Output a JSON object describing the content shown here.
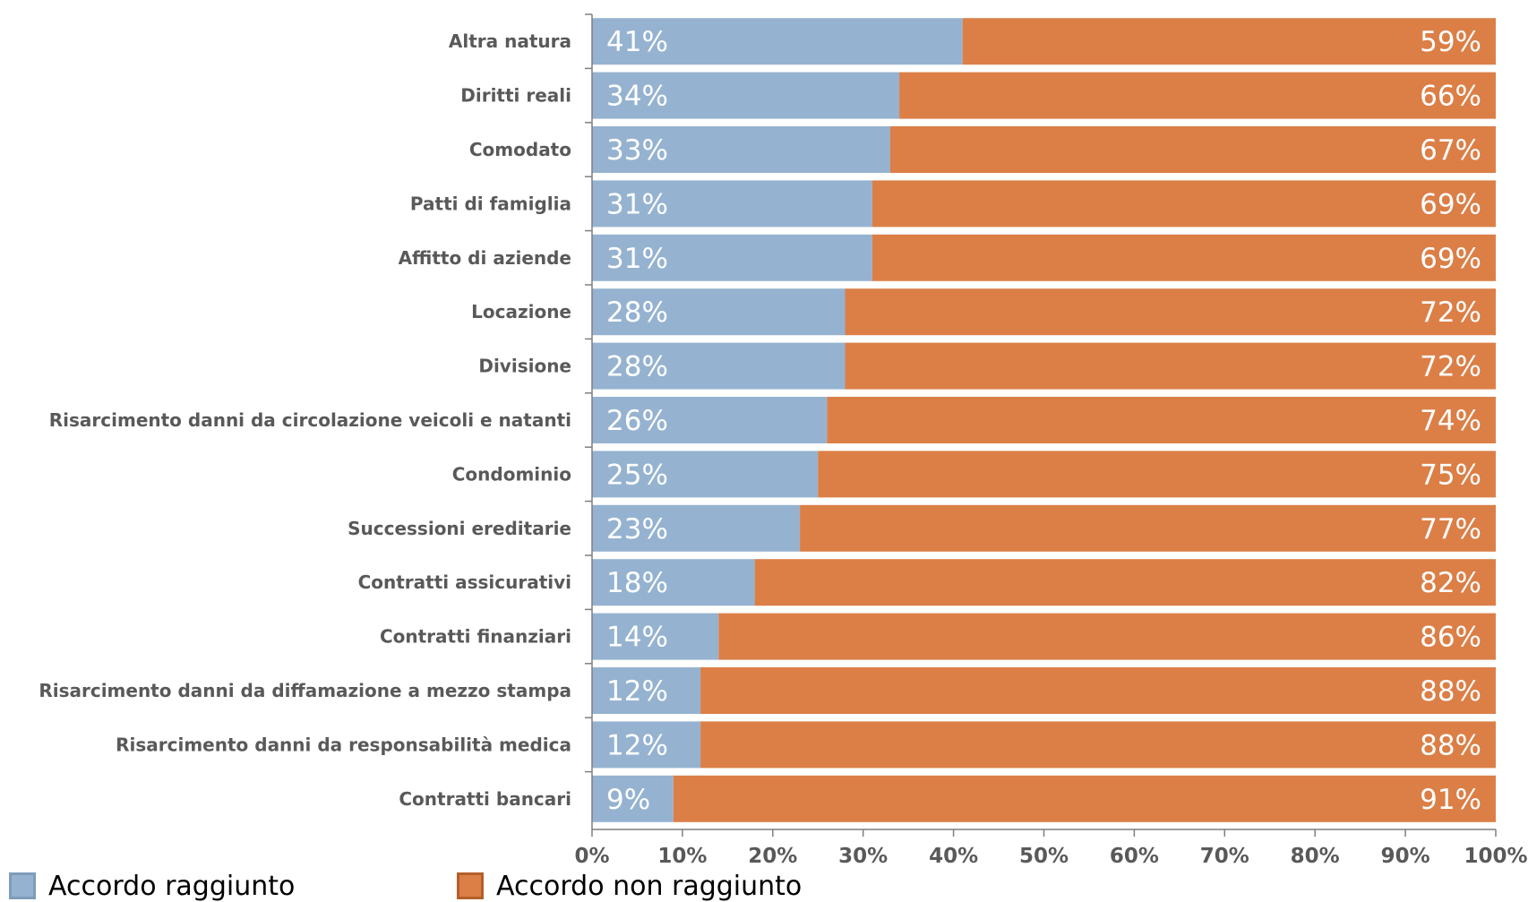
{
  "chart_data": {
    "type": "bar",
    "orientation": "horizontal",
    "stacked": "100%",
    "categories": [
      "Altra natura",
      "Diritti reali",
      "Comodato",
      "Patti di famiglia",
      "Affitto di aziende",
      "Locazione",
      "Divisione",
      "Risarcimento danni da circolazione veicoli e natanti",
      "Condominio",
      "Successioni ereditarie",
      "Contratti assicurativi",
      "Contratti finanziari",
      "Risarcimento danni da diffamazione a mezzo stampa",
      "Risarcimento danni da responsabilità medica",
      "Contratti bancari"
    ],
    "series": [
      {
        "name": "Accordo raggiunto",
        "color": "#95b3d0",
        "values": [
          41,
          34,
          33,
          31,
          31,
          28,
          28,
          26,
          25,
          23,
          18,
          14,
          12,
          12,
          9
        ],
        "labels": [
          "41%",
          "34%",
          "33%",
          "31%",
          "31%",
          "28%",
          "28%",
          "26%",
          "25%",
          "23%",
          "18%",
          "14%",
          "12%",
          "12%",
          "9%"
        ]
      },
      {
        "name": "Accordo non raggiunto",
        "color": "#db7f47",
        "values": [
          59,
          66,
          67,
          69,
          69,
          72,
          72,
          74,
          75,
          77,
          82,
          86,
          88,
          88,
          91
        ],
        "labels": [
          "59%",
          "66%",
          "67%",
          "69%",
          "69%",
          "72%",
          "72%",
          "74%",
          "75%",
          "77%",
          "82%",
          "86%",
          "88%",
          "88%",
          "91%"
        ]
      }
    ],
    "xlim": [
      0,
      100
    ],
    "xticks": [
      "0%",
      "10%",
      "20%",
      "30%",
      "40%",
      "50%",
      "60%",
      "70%",
      "80%",
      "90%",
      "100%"
    ],
    "title": "",
    "xlabel": "",
    "ylabel": "",
    "grid": false,
    "legend_position": "bottom-left"
  },
  "legend": {
    "items": [
      {
        "label": "Accordo raggiunto",
        "fill": "#95b3d0",
        "border": "#7f9cba"
      },
      {
        "label": "Accordo non raggiunto",
        "fill": "#db7f47",
        "border": "#b45f2a"
      }
    ]
  },
  "style": {
    "axis_color": "#7f7f7f",
    "category_label_color": "#595959",
    "value_label_color": "#ffffff"
  }
}
